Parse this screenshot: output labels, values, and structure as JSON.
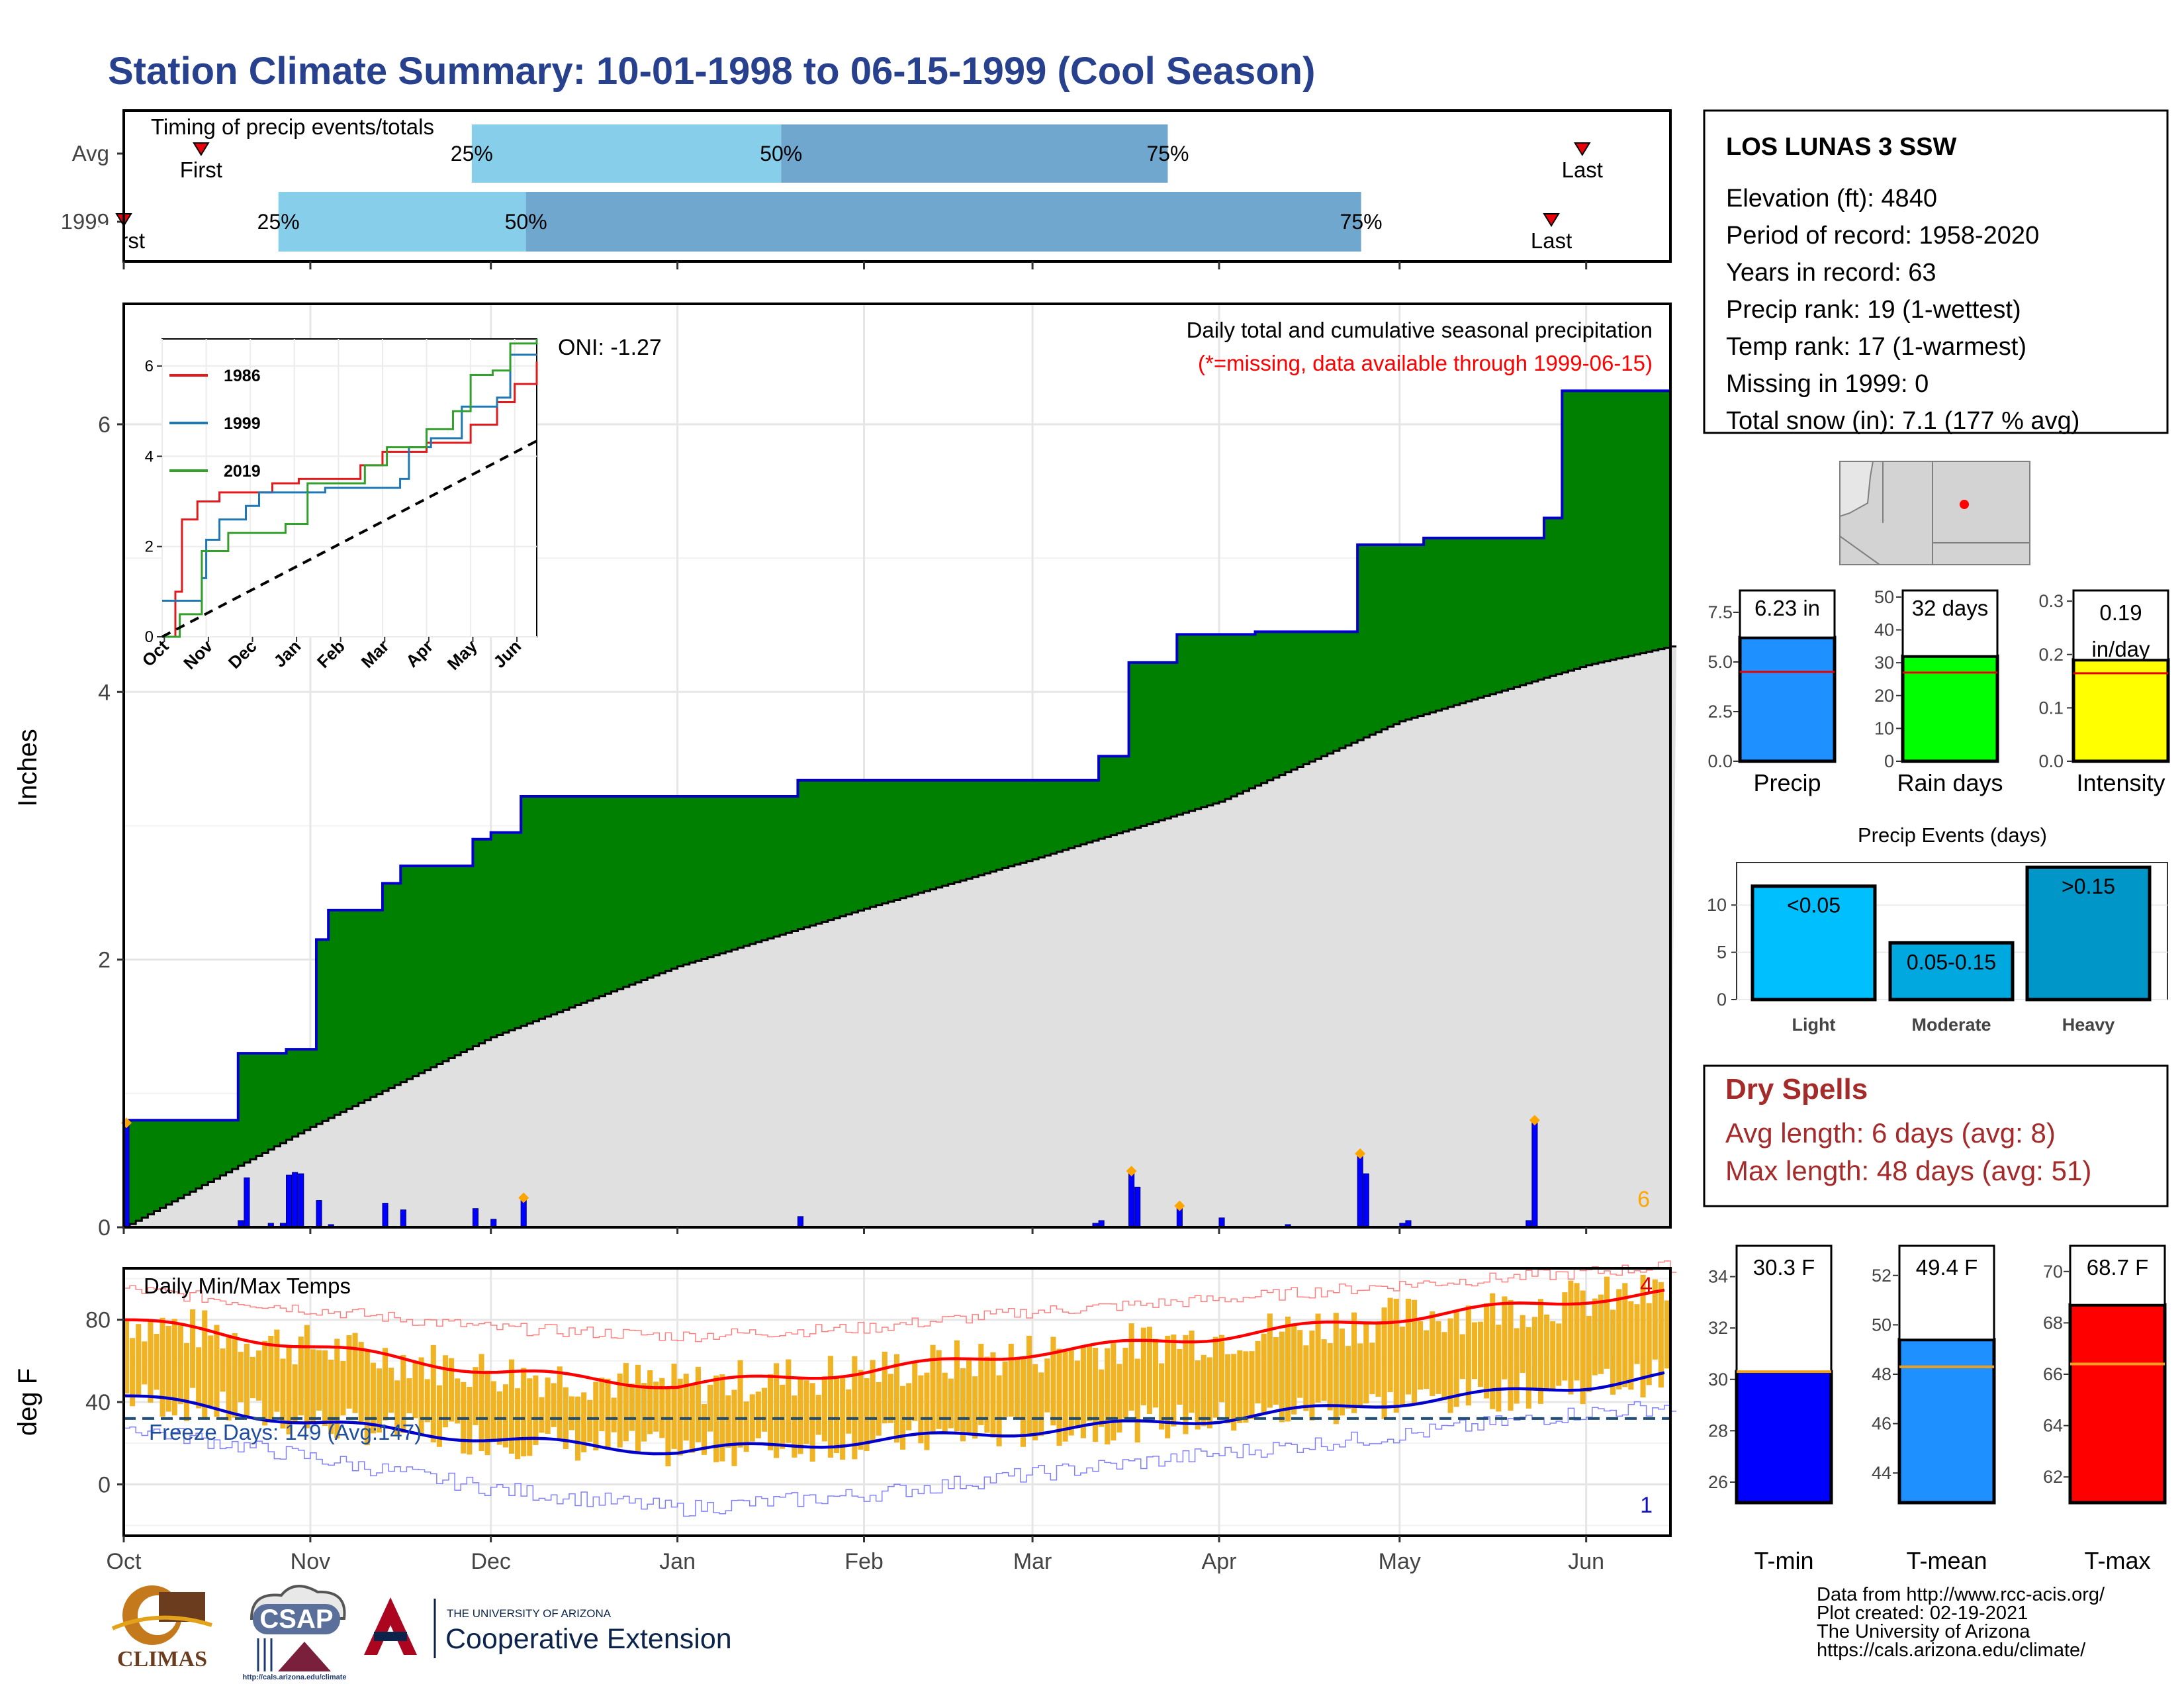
{
  "title": "Station Climate Summary: 10-01-1998 to 06-15-1999 (Cool Season)",
  "timing": {
    "title": "Timing of precip events/totals",
    "rows": [
      {
        "label": "Avg",
        "first_label": "First",
        "last_label": "Last",
        "first": 0.05,
        "p25": 0.225,
        "p50": 0.425,
        "p75": 0.675,
        "last": 0.943
      },
      {
        "label": "1999",
        "first_label": "First",
        "last_label": "Last",
        "first": 0.0,
        "p25": 0.1,
        "p50": 0.26,
        "p75": 0.8,
        "last": 0.923
      }
    ],
    "pct_labels": [
      "25%",
      "50%",
      "75%"
    ],
    "colors": {
      "p25_50": "#87ceeb",
      "p50_75": "#6fa7cf",
      "marker": "#e8000b"
    }
  },
  "station": {
    "name": "LOS LUNAS 3 SSW",
    "lines": [
      "Elevation (ft): 4840",
      "Period of record: 1958-2020",
      "Years in record: 63",
      "Precip rank: 19 (1-wettest)",
      "Temp rank: 17 (1-warmest)",
      "Missing in 1999: 0",
      "Total snow (in): 7.1 (177 % avg)"
    ]
  },
  "precip_panel": {
    "ylabel": "Inches",
    "oni": "ONI: -1.27",
    "subtitle": "Daily total and cumulative seasonal precipitation",
    "missing_note": "(*=missing, data available through 1999-06-15)",
    "corner_count": "6",
    "colors": {
      "fill_above": "#008000",
      "cum_line": "#0000cd",
      "normal_fill": "#e0e0e0",
      "bar": "#0000ff",
      "missing": "#ff0000",
      "snow": "#ffa500"
    }
  },
  "temp_panel": {
    "ylabel": "deg F",
    "title": "Daily Min/Max Temps",
    "freeze": "Freeze Days: 149 (Avg:147)",
    "count_top": "4",
    "count_bottom": "1",
    "colors": {
      "bar": "#f0b323",
      "max_line": "#ff0000",
      "min_line": "#0000cd",
      "freeze_line": "#1f4e79"
    }
  },
  "inset": {
    "legend": [
      "1986",
      "1999",
      "2019"
    ],
    "legend_colors": [
      "#e31a1c",
      "#1f78b4",
      "#33a02c"
    ],
    "x_ticks": [
      "Oct",
      "Nov",
      "Dec",
      "Jan",
      "Feb",
      "Mar",
      "Apr",
      "May",
      "Jun"
    ],
    "y_ticks": [
      "0",
      "2",
      "4",
      "6"
    ]
  },
  "summary_bars": [
    {
      "label": "Precip",
      "value_text": "6.23 in",
      "value": 6.23,
      "avg": 4.5,
      "ymax": 8.6,
      "ticks": [
        "0.0",
        "2.5",
        "5.0",
        "7.5"
      ],
      "tick_values": [
        0,
        2.5,
        5.0,
        7.5
      ],
      "color": "#1e90ff"
    },
    {
      "label": "Rain days",
      "value_text": "32 days",
      "value": 32,
      "avg": 27,
      "ymax": 52,
      "ticks": [
        "0",
        "10",
        "20",
        "30",
        "40",
        "50"
      ],
      "tick_values": [
        0,
        10,
        20,
        30,
        40,
        50
      ],
      "color": "#00ff00"
    },
    {
      "label": "Intensity",
      "value_text": "0.19 in/day",
      "value": 0.19,
      "avg": 0.165,
      "ymax": 0.32,
      "ticks": [
        "0.0",
        "0.1",
        "0.2",
        "0.3"
      ],
      "tick_values": [
        0,
        0.1,
        0.2,
        0.3
      ],
      "color": "#ffff00"
    }
  ],
  "events": {
    "title": "Precip Events (days)",
    "ticks": [
      "0",
      "5",
      "10"
    ],
    "tick_values": [
      0,
      5,
      10
    ],
    "ymax": 14.5,
    "categories": [
      "Light",
      "Moderate",
      "Heavy"
    ],
    "bar_labels": [
      "<0.05",
      "0.05-0.15",
      ">0.15"
    ],
    "values": [
      12,
      6,
      14
    ],
    "colors": [
      "#00bfff",
      "#00a8e0",
      "#0096c8"
    ]
  },
  "dry_spells": {
    "title": "Dry Spells",
    "lines": [
      "Avg length: 6 days (avg: 8)",
      "Max length: 48 days (avg: 51)"
    ],
    "color": "#a52a2a"
  },
  "temp_bars": [
    {
      "label": "T-min",
      "value_text": "30.3 F",
      "value": 30.3,
      "avg": 30.3,
      "ymin": 25.2,
      "ymax": 35.2,
      "ticks": [
        "26",
        "28",
        "30",
        "32",
        "34"
      ],
      "tick_values": [
        26,
        28,
        30,
        32,
        34
      ],
      "color": "#0000ff"
    },
    {
      "label": "T-mean",
      "value_text": "49.4 F",
      "value": 49.4,
      "avg": 48.3,
      "ymin": 42.8,
      "ymax": 53.2,
      "ticks": [
        "44",
        "46",
        "48",
        "50",
        "52"
      ],
      "tick_values": [
        44,
        46,
        48,
        50,
        52
      ],
      "color": "#1e90ff"
    },
    {
      "label": "T-max",
      "value_text": "68.7 F",
      "value": 68.7,
      "avg": 66.4,
      "ymin": 61.0,
      "ymax": 71.0,
      "ticks": [
        "62",
        "64",
        "66",
        "68",
        "70"
      ],
      "tick_values": [
        62,
        64,
        66,
        68,
        70
      ],
      "color": "#ff0000"
    }
  ],
  "footer": [
    "Data from http://www.rcc-acis.org/",
    "Plot created: 02-19-2021",
    "The University of Arizona",
    "https://cals.arizona.edu/climate/"
  ],
  "logos": {
    "climas": "CLIMAS",
    "csap": "CSAP",
    "csap_url": "http://cals.arizona.edu/climate",
    "ua_small": "THE UNIVERSITY OF ARIZONA",
    "ua_big": "Cooperative Extension"
  },
  "chart_data": [
    {
      "type": "area",
      "name": "Daily total and cumulative seasonal precipitation",
      "xlabel": "",
      "ylabel": "Inches",
      "ylim": [
        0,
        6.9
      ],
      "x_ticks": [
        "Oct",
        "Nov",
        "Dec",
        "Jan",
        "Feb",
        "Mar",
        "Apr",
        "May",
        "Jun"
      ],
      "y_ticks": [
        0,
        2,
        4,
        6
      ],
      "grid": true,
      "series": [
        {
          "name": "observed",
          "steps": [
            [
              "1998-10-01",
              0.8
            ],
            [
              "1998-10-20",
              1.3
            ],
            [
              "1998-10-28",
              1.33
            ],
            [
              "1998-11-02",
              2.15
            ],
            [
              "1998-11-04",
              2.37
            ],
            [
              "1998-11-13",
              2.57
            ],
            [
              "1998-11-16",
              2.7
            ],
            [
              "1998-11-28",
              2.9
            ],
            [
              "1998-12-01",
              2.95
            ],
            [
              "1998-12-06",
              3.22
            ],
            [
              "1999-01-21",
              3.34
            ],
            [
              "1999-03-12",
              3.52
            ],
            [
              "1999-03-17",
              4.22
            ],
            [
              "1999-03-25",
              4.43
            ],
            [
              "1999-04-07",
              4.45
            ],
            [
              "1999-04-24",
              5.1
            ],
            [
              "1999-05-05",
              5.15
            ],
            [
              "1999-05-25",
              5.3
            ],
            [
              "1999-05-28",
              6.25
            ],
            [
              "1999-06-15",
              6.25
            ]
          ]
        },
        {
          "name": "normal",
          "points": [
            [
              "1998-10-01",
              0.0
            ],
            [
              "1998-11-01",
              0.75
            ],
            [
              "1998-12-01",
              1.42
            ],
            [
              "1999-01-01",
              1.95
            ],
            [
              "1999-02-01",
              2.38
            ],
            [
              "1999-03-01",
              2.75
            ],
            [
              "1999-04-01",
              3.18
            ],
            [
              "1999-05-01",
              3.78
            ],
            [
              "1999-06-01",
              4.2
            ],
            [
              "1999-06-15",
              4.34
            ]
          ]
        }
      ],
      "daily_events": [
        [
          "1998-10-01",
          0.78
        ],
        [
          "1998-10-20",
          0.05
        ],
        [
          "1998-10-21",
          0.37
        ],
        [
          "1998-10-25",
          0.03
        ],
        [
          "1998-10-27",
          0.03
        ],
        [
          "1998-10-28",
          0.39
        ],
        [
          "1998-10-29",
          0.41
        ],
        [
          "1998-10-30",
          0.4
        ],
        [
          "1998-11-02",
          0.2
        ],
        [
          "1998-11-04",
          0.02
        ],
        [
          "1998-11-13",
          0.18
        ],
        [
          "1998-11-16",
          0.13
        ],
        [
          "1998-11-28",
          0.14
        ],
        [
          "1998-12-01",
          0.06
        ],
        [
          "1998-12-06",
          0.2
        ],
        [
          "1999-01-21",
          0.08
        ],
        [
          "1999-03-11",
          0.03
        ],
        [
          "1999-03-12",
          0.05
        ],
        [
          "1999-03-17",
          0.41
        ],
        [
          "1999-03-18",
          0.3
        ],
        [
          "1999-03-25",
          0.15
        ],
        [
          "1999-04-01",
          0.07
        ],
        [
          "1999-04-12",
          0.02
        ],
        [
          "1999-04-24",
          0.55
        ],
        [
          "1999-04-25",
          0.4
        ],
        [
          "1999-05-01",
          0.03
        ],
        [
          "1999-05-02",
          0.05
        ],
        [
          "1999-05-22",
          0.05
        ],
        [
          "1999-05-23",
          0.8
        ]
      ]
    },
    {
      "type": "bar",
      "name": "Daily Min/Max Temps",
      "ylabel": "deg F",
      "ylim": [
        -25,
        105
      ],
      "y_ticks": [
        0,
        40,
        80
      ],
      "x_ticks": [
        "Oct",
        "Nov",
        "Dec",
        "Jan",
        "Feb",
        "Mar",
        "Apr",
        "May",
        "Jun"
      ],
      "freeze_threshold": 32,
      "series": [
        {
          "name": "Tmax normal",
          "points": [
            [
              "1998-10-01",
              80
            ],
            [
              "1998-11-01",
              67
            ],
            [
              "1998-12-01",
              55
            ],
            [
              "1999-01-01",
              48
            ],
            [
              "1999-02-01",
              55
            ],
            [
              "1999-03-01",
              64
            ],
            [
              "1999-04-01",
              72
            ],
            [
              "1999-05-01",
              81
            ],
            [
              "1999-06-01",
              90
            ],
            [
              "1999-06-15",
              93
            ]
          ]
        },
        {
          "name": "Tmin normal",
          "points": [
            [
              "1998-10-01",
              43
            ],
            [
              "1998-11-01",
              30
            ],
            [
              "1998-12-01",
              22
            ],
            [
              "1999-01-01",
              16
            ],
            [
              "1999-02-01",
              21
            ],
            [
              "1999-03-01",
              26
            ],
            [
              "1999-04-01",
              32
            ],
            [
              "1999-05-01",
              40
            ],
            [
              "1999-06-01",
              48
            ],
            [
              "1999-06-15",
              53
            ]
          ]
        },
        {
          "name": "Tmax record",
          "points": [
            [
              "1998-10-01",
              95
            ],
            [
              "1998-11-01",
              85
            ],
            [
              "1998-12-01",
              76
            ],
            [
              "1999-01-01",
              72
            ],
            [
              "1999-02-01",
              76
            ],
            [
              "1999-03-01",
              84
            ],
            [
              "1999-04-01",
              90
            ],
            [
              "1999-05-01",
              97
            ],
            [
              "1999-06-01",
              103
            ],
            [
              "1999-06-15",
              106
            ]
          ]
        },
        {
          "name": "Tmin record",
          "points": [
            [
              "1998-10-01",
              28
            ],
            [
              "1998-11-01",
              13
            ],
            [
              "1998-12-01",
              -2
            ],
            [
              "1999-01-01",
              -12
            ],
            [
              "1999-02-01",
              -5
            ],
            [
              "1999-03-01",
              5
            ],
            [
              "1999-04-01",
              15
            ],
            [
              "1999-05-01",
              24
            ],
            [
              "1999-06-01",
              35
            ],
            [
              "1999-06-15",
              38
            ]
          ]
        }
      ]
    },
    {
      "type": "line",
      "name": "inset cumulative precipitation",
      "ylim": [
        0,
        6.6
      ],
      "series": [
        {
          "name": "1986",
          "points": [
            [
              0,
              0
            ],
            [
              0.3,
              1.0
            ],
            [
              0.45,
              2.6
            ],
            [
              0.8,
              3.0
            ],
            [
              1.3,
              3.2
            ],
            [
              2.5,
              3.4
            ],
            [
              3.1,
              3.5
            ],
            [
              4.5,
              3.8
            ],
            [
              5.0,
              4.1
            ],
            [
              6.0,
              4.3
            ],
            [
              7.0,
              4.7
            ],
            [
              7.6,
              5.2
            ],
            [
              8.0,
              5.6
            ],
            [
              8.5,
              6.1
            ]
          ]
        },
        {
          "name": "1999",
          "points": [
            [
              0,
              0.8
            ],
            [
              0.7,
              0.8
            ],
            [
              0.9,
              1.3
            ],
            [
              1.0,
              2.15
            ],
            [
              1.3,
              2.6
            ],
            [
              1.9,
              2.9
            ],
            [
              2.2,
              3.2
            ],
            [
              3.7,
              3.3
            ],
            [
              5.4,
              3.5
            ],
            [
              5.6,
              4.2
            ],
            [
              6.1,
              4.4
            ],
            [
              6.8,
              5.1
            ],
            [
              7.6,
              5.3
            ],
            [
              7.9,
              6.25
            ],
            [
              8.5,
              6.25
            ]
          ]
        },
        {
          "name": "2019",
          "points": [
            [
              0,
              0
            ],
            [
              0.4,
              0.5
            ],
            [
              0.9,
              1.9
            ],
            [
              1.5,
              2.3
            ],
            [
              2.8,
              2.5
            ],
            [
              3.3,
              3.4
            ],
            [
              4.6,
              3.8
            ],
            [
              5.1,
              4.2
            ],
            [
              6.0,
              4.6
            ],
            [
              6.6,
              5.0
            ],
            [
              7.0,
              5.8
            ],
            [
              7.5,
              5.9
            ],
            [
              7.9,
              6.5
            ],
            [
              8.5,
              6.6
            ]
          ]
        },
        {
          "name": "normal",
          "points": [
            [
              0,
              0
            ],
            [
              8.5,
              4.34
            ]
          ]
        }
      ]
    }
  ]
}
